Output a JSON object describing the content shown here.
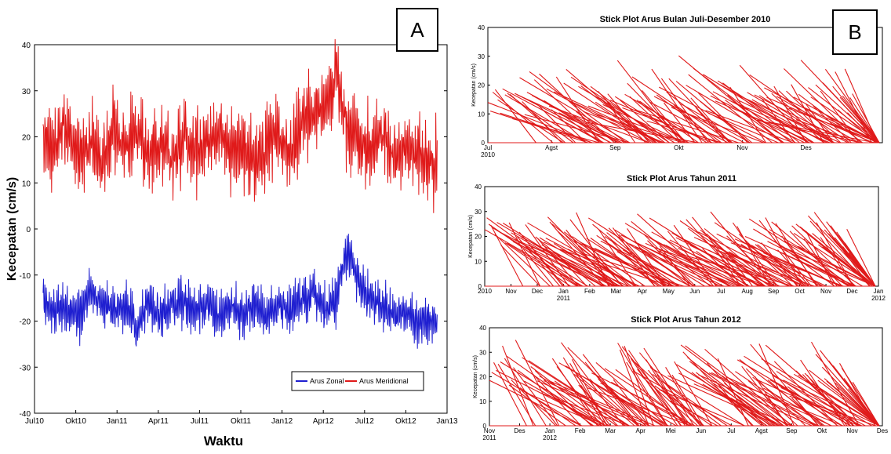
{
  "panel_a": {
    "badge": "A",
    "legend": [
      "Arus Zonal",
      "Arus Meridional"
    ],
    "colors": {
      "zonal": "#1f1fd0",
      "meridional": "#e01a1a"
    }
  },
  "panel_b": {
    "badge": "B",
    "color": "#e01a1a"
  },
  "chart_data": [
    {
      "type": "line",
      "title": "",
      "xlabel": "Waktu",
      "ylabel": "Kecepatan (cm/s)",
      "xlim": [
        "2010-07-01",
        "2013-01-01"
      ],
      "ylim": [
        -40,
        40
      ],
      "x_ticks": [
        "Jul10",
        "Okt10",
        "Jan11",
        "Apr11",
        "Jul11",
        "Okt11",
        "Jan12",
        "Apr12",
        "Jul12",
        "Okt12",
        "Jan13"
      ],
      "y_ticks": [
        40,
        30,
        20,
        10,
        0,
        -10,
        -20,
        -30,
        -40
      ],
      "legend_position": "bottom-right",
      "x": [
        "2010-07-20",
        "2010-08-15",
        "2010-09-10",
        "2010-10-06",
        "2010-11-01",
        "2010-11-27",
        "2010-12-23",
        "2011-01-18",
        "2011-02-13",
        "2011-03-11",
        "2011-04-06",
        "2011-05-02",
        "2011-05-28",
        "2011-06-23",
        "2011-07-19",
        "2011-08-14",
        "2011-09-09",
        "2011-10-05",
        "2011-10-31",
        "2011-11-26",
        "2011-12-22",
        "2012-01-17",
        "2012-02-12",
        "2012-03-09",
        "2012-04-04",
        "2012-04-30",
        "2012-05-26",
        "2012-06-21",
        "2012-07-17",
        "2012-08-12",
        "2012-09-07",
        "2012-10-03",
        "2012-10-29",
        "2012-11-24"
      ],
      "series": [
        {
          "name": "Arus Meridional",
          "values": [
            20,
            17,
            23,
            15,
            19,
            14,
            22,
            18,
            21,
            16,
            19,
            15,
            20,
            17,
            18,
            21,
            16,
            19,
            15,
            18,
            20,
            17,
            23,
            25,
            28,
            33,
            22,
            19,
            17,
            20,
            15,
            18,
            16,
            14
          ]
        },
        {
          "name": "Arus Zonal",
          "values": [
            -15,
            -18,
            -17,
            -19,
            -14,
            -16,
            -18,
            -17,
            -21,
            -16,
            -19,
            -17,
            -15,
            -18,
            -16,
            -19,
            -17,
            -18,
            -16,
            -19,
            -17,
            -18,
            -16,
            -14,
            -18,
            -15,
            -4,
            -12,
            -15,
            -17,
            -19,
            -18,
            -21,
            -20
          ]
        }
      ]
    },
    {
      "type": "line",
      "title": "Stick Plot Arus Bulan Juli-Desember 2010",
      "ylabel": "Kecepatan (cm/s)",
      "ylim": [
        0,
        40
      ],
      "y_ticks": [
        40,
        30,
        20,
        10,
        0
      ],
      "x_ticks": [
        "Jul\n2010",
        "Agst",
        "Sep",
        "Okt",
        "Nov",
        "Des"
      ],
      "series": [
        {
          "values": [
            19,
            14,
            22,
            33,
            15,
            17,
            24,
            28,
            19,
            26,
            13,
            18,
            22,
            27,
            16,
            12,
            20,
            28,
            17,
            24,
            22,
            26,
            18,
            21,
            23
          ]
        }
      ]
    },
    {
      "type": "line",
      "title": "Stick Plot Arus Tahun 2011",
      "ylabel": "Kecepatan (cm/s)",
      "ylim": [
        0,
        40
      ],
      "y_ticks": [
        40,
        30,
        20,
        10,
        0
      ],
      "x_ticks": [
        "2010",
        "Nov",
        "Dec",
        "Jan\n2011",
        "Feb",
        "Mar",
        "Apr",
        "May",
        "Jun",
        "Jul",
        "Aug",
        "Sep",
        "Oct",
        "Nov",
        "Dec",
        "Jan\n2012"
      ],
      "series": [
        {
          "values": [
            24,
            28,
            31,
            30,
            27,
            24,
            29,
            22,
            26,
            30,
            28,
            25,
            30,
            27,
            24,
            31,
            26,
            23,
            28,
            22,
            25,
            30,
            24,
            27,
            23,
            21,
            25,
            20,
            24,
            22
          ]
        }
      ]
    },
    {
      "type": "line",
      "title": "Stick Plot Arus Tahun 2012",
      "ylabel": "Kecepatan (cm/s)",
      "ylim": [
        0,
        40
      ],
      "y_ticks": [
        40,
        30,
        20,
        10,
        0
      ],
      "x_ticks": [
        "Nov\n2011",
        "Des",
        "Jan\n2012",
        "Feb",
        "Mar",
        "Apr",
        "Mei",
        "Jun",
        "Jul",
        "Agst",
        "Sep",
        "Okt",
        "Nov",
        "Des"
      ],
      "series": [
        {
          "values": [
            26,
            30,
            32,
            36,
            34,
            38,
            33,
            29,
            35,
            28,
            31,
            27,
            37,
            30,
            26,
            33,
            28,
            24,
            30,
            27,
            23,
            29,
            25,
            22,
            20,
            24,
            21,
            18
          ]
        }
      ]
    }
  ]
}
